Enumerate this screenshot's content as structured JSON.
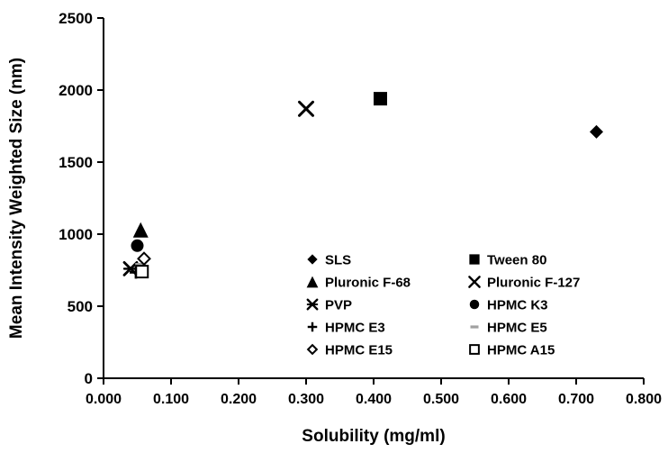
{
  "figure": {
    "background": "#ffffff",
    "axis_color": "#000000",
    "text_color": "#000000"
  },
  "chart_data": {
    "type": "scatter",
    "title": "",
    "xlabel": "Solubility (mg/ml)",
    "ylabel": "Mean Intensity Weighted Size (nm)",
    "xlim": [
      0.0,
      0.8
    ],
    "ylim": [
      0,
      2500
    ],
    "xticks": [
      0.0,
      0.1,
      0.2,
      0.3,
      0.4,
      0.5,
      0.6,
      0.7,
      0.8
    ],
    "xtick_labels": [
      "0.000",
      "0.100",
      "0.200",
      "0.300",
      "0.400",
      "0.500",
      "0.600",
      "0.700",
      "0.800"
    ],
    "yticks": [
      0,
      500,
      1000,
      1500,
      2000,
      2500
    ],
    "ytick_labels": [
      "0",
      "500",
      "1000",
      "1500",
      "2000",
      "2500"
    ],
    "grid": false,
    "legend_position": "inside-lower-middle",
    "legend_columns": 2,
    "series": [
      {
        "name": "SLS",
        "marker": "diamond-filled",
        "color": "#000000",
        "points": [
          [
            0.73,
            1710
          ]
        ]
      },
      {
        "name": "Tween 80",
        "marker": "square-filled",
        "color": "#000000",
        "points": [
          [
            0.41,
            1940
          ]
        ]
      },
      {
        "name": "Pluronic F-68",
        "marker": "triangle-filled",
        "color": "#000000",
        "points": [
          [
            0.055,
            1030
          ]
        ]
      },
      {
        "name": "Pluronic F-127",
        "marker": "x",
        "color": "#000000",
        "points": [
          [
            0.3,
            1870
          ]
        ]
      },
      {
        "name": "PVP",
        "marker": "x-dash",
        "color": "#000000",
        "points": [
          [
            0.04,
            760
          ]
        ]
      },
      {
        "name": "HPMC K3",
        "marker": "circle-filled",
        "color": "#000000",
        "points": [
          [
            0.05,
            920
          ]
        ]
      },
      {
        "name": "HPMC E3",
        "marker": "plus",
        "color": "#000000",
        "points": [
          [
            0.048,
            735
          ]
        ]
      },
      {
        "name": "HPMC E5",
        "marker": "dash",
        "color": "#a0a0a0",
        "points": [
          [
            0.055,
            790
          ]
        ]
      },
      {
        "name": "HPMC E15",
        "marker": "diamond-open",
        "color": "#000000",
        "points": [
          [
            0.06,
            830
          ]
        ]
      },
      {
        "name": "HPMC A15",
        "marker": "square-open",
        "color": "#000000",
        "points": [
          [
            0.057,
            740
          ]
        ]
      }
    ]
  }
}
